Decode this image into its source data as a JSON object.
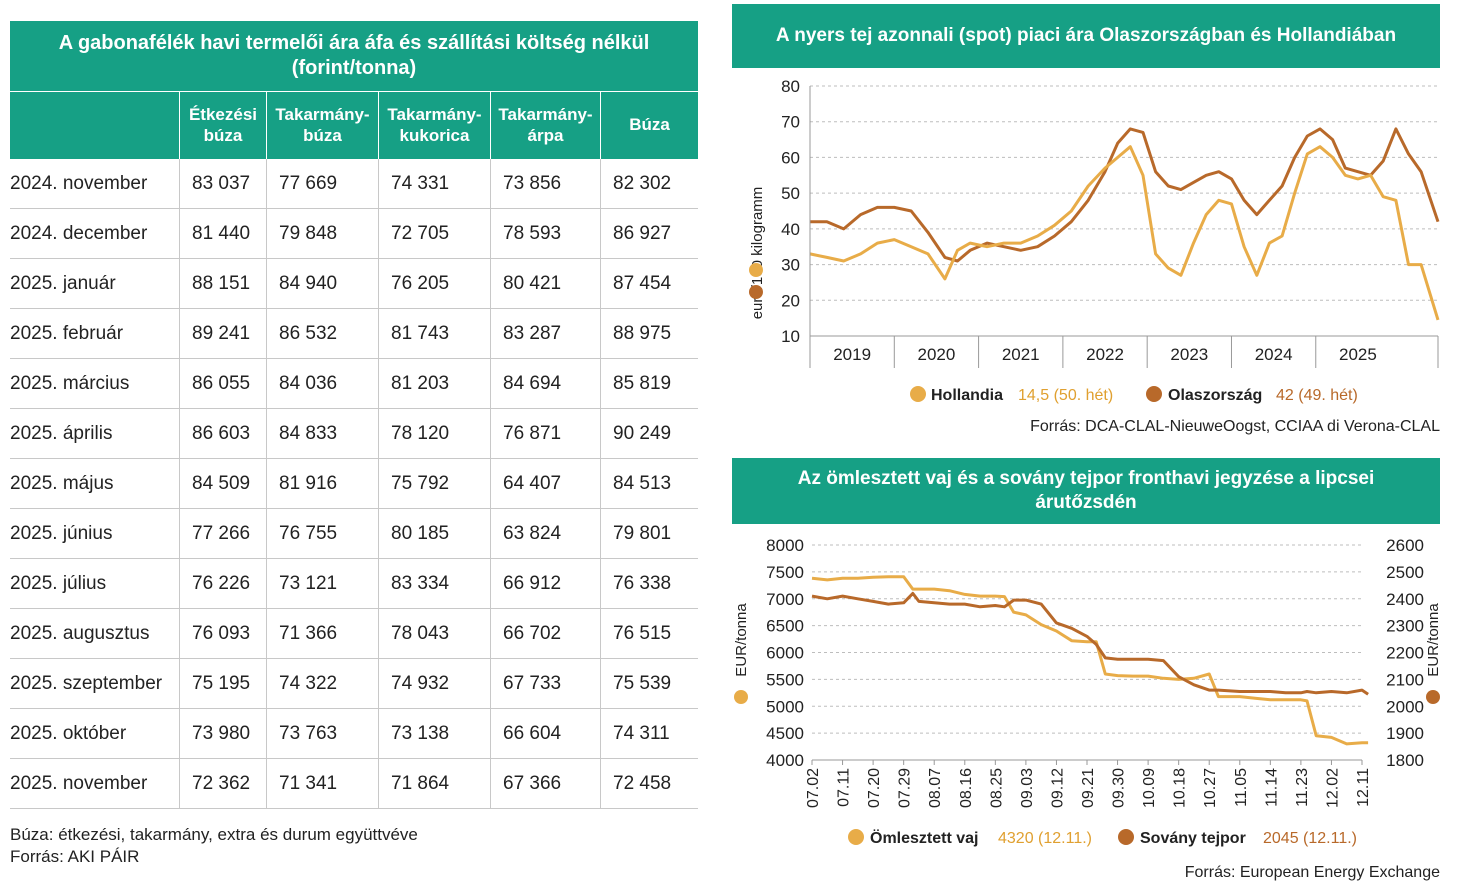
{
  "table": {
    "title": "A gabonafélék havi termelői ára áfa és szállítási költség nélkül (forint/tonna)",
    "columns": [
      "Étkezési búza",
      "Takarmány-búza",
      "Takarmány-kukorica",
      "Takarmány-árpa",
      "Búza"
    ],
    "rows": [
      {
        "label": "2024. november",
        "values": [
          "83 037",
          "77 669",
          "74 331",
          "73 856",
          "82 302"
        ]
      },
      {
        "label": "2024. december",
        "values": [
          "81 440",
          "79 848",
          "72 705",
          "78 593",
          "86 927"
        ]
      },
      {
        "label": "2025. január",
        "values": [
          "88 151",
          "84 940",
          "76 205",
          "80 421",
          "87 454"
        ]
      },
      {
        "label": "2025. február",
        "values": [
          "89 241",
          "86 532",
          "81 743",
          "83 287",
          "88 975"
        ]
      },
      {
        "label": "2025. március",
        "values": [
          "86 055",
          "84 036",
          "81 203",
          "84 694",
          "85 819"
        ]
      },
      {
        "label": "2025. április",
        "values": [
          "86 603",
          "84 833",
          "78 120",
          "76 871",
          "90 249"
        ]
      },
      {
        "label": "2025. május",
        "values": [
          "84 509",
          "81 916",
          "75 792",
          "64 407",
          "84 513"
        ]
      },
      {
        "label": "2025. június",
        "values": [
          "77 266",
          "76 755",
          "80 185",
          "63 824",
          "79 801"
        ]
      },
      {
        "label": "2025. július",
        "values": [
          "76 226",
          "73 121",
          "83 334",
          "66 912",
          "76 338"
        ]
      },
      {
        "label": "2025. augusztus",
        "values": [
          "76 093",
          "71 366",
          "78 043",
          "66 702",
          "76 515"
        ]
      },
      {
        "label": "2025. szeptember",
        "values": [
          "75 195",
          "74 322",
          "74 932",
          "67 733",
          "75 539"
        ]
      },
      {
        "label": "2025. október",
        "values": [
          "73 980",
          "73 763",
          "73 138",
          "66 604",
          "74 311"
        ]
      },
      {
        "label": "2025. november",
        "values": [
          "72 362",
          "71 341",
          "71 864",
          "67 366",
          "72 458"
        ]
      }
    ],
    "note": "Búza: étkezési, takarmány, extra és durum együttvéve",
    "source": "Forrás: AKI PÁIR"
  },
  "colors": {
    "header": "#16a085",
    "light": "#e8ac48",
    "dark": "#b8692a"
  },
  "chart_data": [
    {
      "type": "line",
      "title": "A nyers tej azonnali (spot) piaci ára Olaszországban és Hollandiában",
      "ylabel": "euró/100 kilogramm",
      "ylim": [
        10,
        80
      ],
      "yticks": [
        "80",
        "70",
        "60",
        "50",
        "40",
        "30",
        "20",
        "10"
      ],
      "xlabels": [
        "2019",
        "2020",
        "2021",
        "2022",
        "2023",
        "2024",
        "2025"
      ],
      "series": [
        {
          "name": "Hollandia",
          "legend_value": "14,5 (50. hét)",
          "x": [
            2018.5,
            2018.7,
            2018.9,
            2019.1,
            2019.3,
            2019.5,
            2019.7,
            2019.9,
            2020.1,
            2020.25,
            2020.4,
            2020.6,
            2020.8,
            2021.0,
            2021.2,
            2021.4,
            2021.6,
            2021.8,
            2022.0,
            2022.15,
            2022.3,
            2022.45,
            2022.6,
            2022.75,
            2022.9,
            2023.05,
            2023.2,
            2023.35,
            2023.5,
            2023.65,
            2023.8,
            2023.95,
            2024.1,
            2024.25,
            2024.4,
            2024.55,
            2024.7,
            2024.85,
            2025.0,
            2025.15,
            2025.3,
            2025.45,
            2025.6,
            2025.75,
            2025.95
          ],
          "values": [
            33,
            32,
            31,
            33,
            36,
            37,
            35,
            33,
            26,
            34,
            36,
            35,
            36,
            36,
            38,
            41,
            45,
            52,
            57,
            60,
            63,
            55,
            33,
            29,
            27,
            36,
            44,
            48,
            47,
            35,
            27,
            36,
            38,
            50,
            61,
            63,
            60,
            55,
            54,
            55,
            49,
            48,
            30,
            30,
            14.5
          ]
        },
        {
          "name": "Olaszország",
          "legend_value": "42 (49. hét)",
          "x": [
            2018.5,
            2018.7,
            2018.9,
            2019.1,
            2019.3,
            2019.5,
            2019.7,
            2019.9,
            2020.1,
            2020.25,
            2020.4,
            2020.6,
            2020.8,
            2021.0,
            2021.2,
            2021.4,
            2021.6,
            2021.8,
            2022.0,
            2022.15,
            2022.3,
            2022.45,
            2022.6,
            2022.75,
            2022.9,
            2023.05,
            2023.2,
            2023.35,
            2023.5,
            2023.65,
            2023.8,
            2023.95,
            2024.1,
            2024.25,
            2024.4,
            2024.55,
            2024.7,
            2024.85,
            2025.0,
            2025.15,
            2025.3,
            2025.45,
            2025.6,
            2025.75,
            2025.95
          ],
          "values": [
            42,
            42,
            40,
            44,
            46,
            46,
            45,
            39,
            32,
            31,
            34,
            36,
            35,
            34,
            35,
            38,
            42,
            48,
            56,
            64,
            68,
            67,
            56,
            52,
            51,
            53,
            55,
            56,
            54,
            48,
            44,
            48,
            52,
            60,
            66,
            68,
            65,
            57,
            56,
            55,
            59,
            68,
            61,
            56,
            42
          ]
        }
      ],
      "source": "Forrás: DCA-CLAL-NieuweOogst, CCIAA di Verona-CLAL"
    },
    {
      "type": "line",
      "title": "Az ömlesztett vaj és a sovány tejpor fronthavi jegyzése a lipcsei árutőzsdén",
      "ylabel_left": "EUR/tonna",
      "ylabel_right": "EUR/tonna",
      "ylim_left": [
        4000,
        8000
      ],
      "ylim_right": [
        1800,
        2600
      ],
      "yticks_left": [
        "8000",
        "7500",
        "7000",
        "6500",
        "6000",
        "5500",
        "5000",
        "4500",
        "4000"
      ],
      "yticks_right": [
        "2600",
        "2500",
        "2400",
        "2300",
        "2200",
        "2100",
        "2000",
        "1900",
        "1800"
      ],
      "xlabels": [
        "07.02",
        "07.11",
        "07.20",
        "07.29",
        "08.07",
        "08.16",
        "08.25",
        "09.03",
        "09.12",
        "09.21",
        "09.30",
        "10.09",
        "10.18",
        "10.27",
        "11.05",
        "11.14",
        "11.23",
        "12.02",
        "12.11"
      ],
      "series": [
        {
          "name": "Ömlesztett vaj",
          "axis": "left",
          "legend_value": "4320 (12.11.)",
          "x": [
            0,
            0.5,
            1,
            1.5,
            2,
            2.5,
            3,
            3.3,
            3.5,
            4,
            4.5,
            5,
            5.5,
            6,
            6.3,
            6.6,
            7,
            7.5,
            8,
            8.5,
            9,
            9.3,
            9.6,
            10,
            10.5,
            11,
            11.5,
            12,
            12.5,
            13,
            13.3,
            14,
            14.5,
            15,
            15.5,
            16,
            16.2,
            16.5,
            17,
            17.5,
            18,
            18.2
          ],
          "values": [
            7380,
            7350,
            7380,
            7380,
            7400,
            7410,
            7410,
            7180,
            7180,
            7180,
            7150,
            7080,
            7050,
            7050,
            7040,
            6750,
            6700,
            6520,
            6400,
            6220,
            6200,
            6200,
            5600,
            5570,
            5560,
            5560,
            5520,
            5500,
            5520,
            5600,
            5180,
            5180,
            5150,
            5120,
            5120,
            5120,
            5100,
            4450,
            4420,
            4300,
            4320,
            4320
          ]
        },
        {
          "name": "Sovány tejpor",
          "axis": "right",
          "legend_value": "2045 (12.11.)",
          "x": [
            0,
            0.5,
            1,
            1.5,
            2,
            2.5,
            3,
            3.3,
            3.5,
            4,
            4.5,
            5,
            5.5,
            6,
            6.3,
            6.6,
            7,
            7.5,
            8,
            8.5,
            9,
            9.3,
            9.6,
            10,
            10.5,
            11,
            11.5,
            12,
            12.5,
            13,
            13.3,
            14,
            14.5,
            15,
            15.5,
            16,
            16.2,
            16.5,
            17,
            17.5,
            18,
            18.2
          ],
          "values": [
            2410,
            2400,
            2410,
            2400,
            2390,
            2380,
            2385,
            2420,
            2390,
            2385,
            2380,
            2380,
            2370,
            2375,
            2370,
            2395,
            2395,
            2380,
            2310,
            2290,
            2260,
            2230,
            2180,
            2175,
            2175,
            2175,
            2170,
            2110,
            2080,
            2060,
            2060,
            2055,
            2055,
            2055,
            2050,
            2050,
            2055,
            2050,
            2055,
            2050,
            2060,
            2045
          ]
        }
      ],
      "source": "Forrás: European Energy Exchange"
    }
  ]
}
